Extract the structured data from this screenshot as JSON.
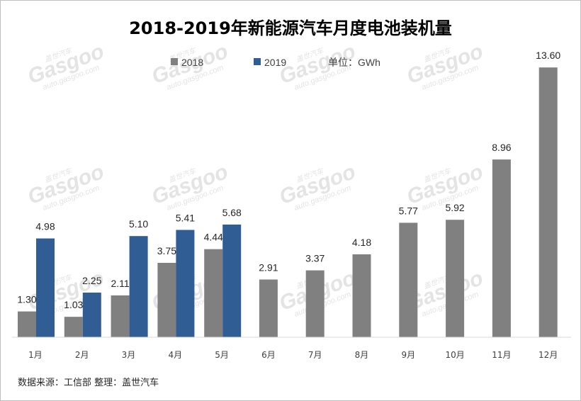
{
  "chart_data": {
    "type": "bar",
    "title": "2018-2019年新能源汽车月度电池装机量",
    "unit_label": "单位：GWh",
    "categories": [
      "1月",
      "2月",
      "3月",
      "4月",
      "5月",
      "6月",
      "7月",
      "8月",
      "9月",
      "10月",
      "11月",
      "12月"
    ],
    "series": [
      {
        "name": "2018",
        "color": "#808080",
        "values": [
          1.3,
          1.03,
          2.11,
          3.75,
          4.44,
          2.91,
          3.37,
          4.18,
          5.77,
          5.92,
          8.96,
          13.6
        ]
      },
      {
        "name": "2019",
        "color": "#2f5d94",
        "values": [
          4.98,
          2.25,
          5.1,
          5.41,
          5.68,
          null,
          null,
          null,
          null,
          null,
          null,
          null
        ]
      }
    ],
    "ylim": [
      0,
      14
    ],
    "grid": false,
    "legend_position": "top-center"
  },
  "source_note": "数据来源：工信部   整理：盖世汽车",
  "watermark": {
    "brand": "Gasgoo",
    "cn": "盖世汽车",
    "url": "auto.gasgoo.com"
  }
}
